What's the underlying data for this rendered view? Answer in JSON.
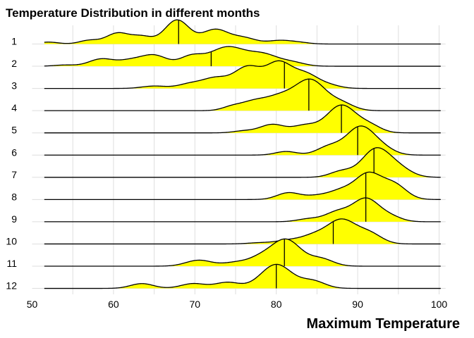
{
  "chart_data": {
    "type": "ridgeline",
    "title": "Temperature Distribution in different months",
    "xlabel": "Maximum Temperature",
    "ylabel": "",
    "xlim": [
      51.5,
      100.2
    ],
    "x_ticks": [
      50,
      60,
      70,
      80,
      90,
      100
    ],
    "grid": true,
    "fill_color": "#ffff00",
    "line_color": "#000000",
    "categories": [
      "1",
      "2",
      "3",
      "4",
      "5",
      "6",
      "7",
      "8",
      "9",
      "10",
      "11",
      "12"
    ],
    "series": [
      {
        "name": "1",
        "median": 68,
        "peaks": [
          [
            52,
            0.08,
            1.2
          ],
          [
            57,
            0.15,
            1.2
          ],
          [
            60.5,
            0.45,
            1.4
          ],
          [
            63.5,
            0.3,
            1.3
          ],
          [
            67.8,
            1.0,
            1.5
          ],
          [
            72.5,
            0.6,
            1.6
          ],
          [
            76,
            0.25,
            1.5
          ],
          [
            80.5,
            0.15,
            1.5
          ],
          [
            83,
            0.05,
            1.2
          ]
        ]
      },
      {
        "name": "2",
        "median": 72,
        "peaks": [
          [
            54,
            0.05,
            1.3
          ],
          [
            58.5,
            0.3,
            1.5
          ],
          [
            62,
            0.22,
            1.5
          ],
          [
            65,
            0.45,
            1.6
          ],
          [
            69.5,
            0.38,
            1.4
          ],
          [
            74,
            0.8,
            2.2
          ],
          [
            78.5,
            0.45,
            1.8
          ],
          [
            82,
            0.15,
            1.5
          ]
        ]
      },
      {
        "name": "3",
        "median": 81,
        "peaks": [
          [
            65,
            0.1,
            1.5
          ],
          [
            69.5,
            0.2,
            1.5
          ],
          [
            72.5,
            0.4,
            1.5
          ],
          [
            76.5,
            0.9,
            1.7
          ],
          [
            80.3,
            1.0,
            1.5
          ],
          [
            83.5,
            0.6,
            1.6
          ],
          [
            86.5,
            0.12,
            1.4
          ]
        ]
      },
      {
        "name": "4",
        "median": 84,
        "peaks": [
          [
            77,
            0.3,
            1.5
          ],
          [
            80.5,
            0.6,
            2.0
          ],
          [
            84.3,
            1.2,
            1.8
          ],
          [
            88,
            0.3,
            1.5
          ],
          [
            74.5,
            0.15,
            1.2
          ]
        ]
      },
      {
        "name": "5",
        "median": 88,
        "peaks": [
          [
            79.5,
            0.35,
            1.5
          ],
          [
            83.5,
            0.3,
            1.5
          ],
          [
            88,
            1.15,
            1.8
          ],
          [
            91.5,
            0.28,
            1.4
          ],
          [
            76,
            0.08,
            1.3
          ]
        ]
      },
      {
        "name": "6",
        "median": 90,
        "peaks": [
          [
            81.2,
            0.15,
            1.3
          ],
          [
            86.5,
            0.35,
            1.5
          ],
          [
            90.3,
            1.15,
            1.7
          ],
          [
            93,
            0.25,
            1.5
          ]
        ]
      },
      {
        "name": "7",
        "median": 92,
        "peaks": [
          [
            88,
            0.25,
            1.4
          ],
          [
            92.2,
            1.15,
            1.7
          ],
          [
            95,
            0.35,
            1.6
          ]
        ]
      },
      {
        "name": "8",
        "median": 91,
        "peaks": [
          [
            81.5,
            0.28,
            1.4
          ],
          [
            85,
            0.15,
            1.5
          ],
          [
            88,
            0.35,
            1.5
          ],
          [
            91.3,
            1.05,
            1.6
          ],
          [
            94.5,
            0.6,
            1.5
          ]
        ]
      },
      {
        "name": "9",
        "median": 91,
        "peaks": [
          [
            84,
            0.12,
            1.4
          ],
          [
            87.5,
            0.4,
            1.5
          ],
          [
            91,
            0.95,
            1.6
          ],
          [
            94,
            0.2,
            1.4
          ]
        ]
      },
      {
        "name": "10",
        "median": 87,
        "peaks": [
          [
            78,
            0.05,
            1.5
          ],
          [
            81.5,
            0.15,
            1.5
          ],
          [
            84.5,
            0.3,
            1.5
          ],
          [
            88,
            1.0,
            1.8
          ],
          [
            91.5,
            0.4,
            1.5
          ]
        ]
      },
      {
        "name": "11",
        "median": 81,
        "peaks": [
          [
            70.5,
            0.25,
            1.6
          ],
          [
            75,
            0.15,
            1.5
          ],
          [
            78,
            0.3,
            1.5
          ],
          [
            81.2,
            1.1,
            1.8
          ],
          [
            85.5,
            0.3,
            1.5
          ]
        ]
      },
      {
        "name": "12",
        "median": 80,
        "peaks": [
          [
            63.5,
            0.2,
            1.4
          ],
          [
            69.8,
            0.2,
            1.5
          ],
          [
            74,
            0.25,
            1.5
          ],
          [
            80,
            1.0,
            1.9
          ],
          [
            84.5,
            0.3,
            1.5
          ]
        ]
      }
    ]
  }
}
